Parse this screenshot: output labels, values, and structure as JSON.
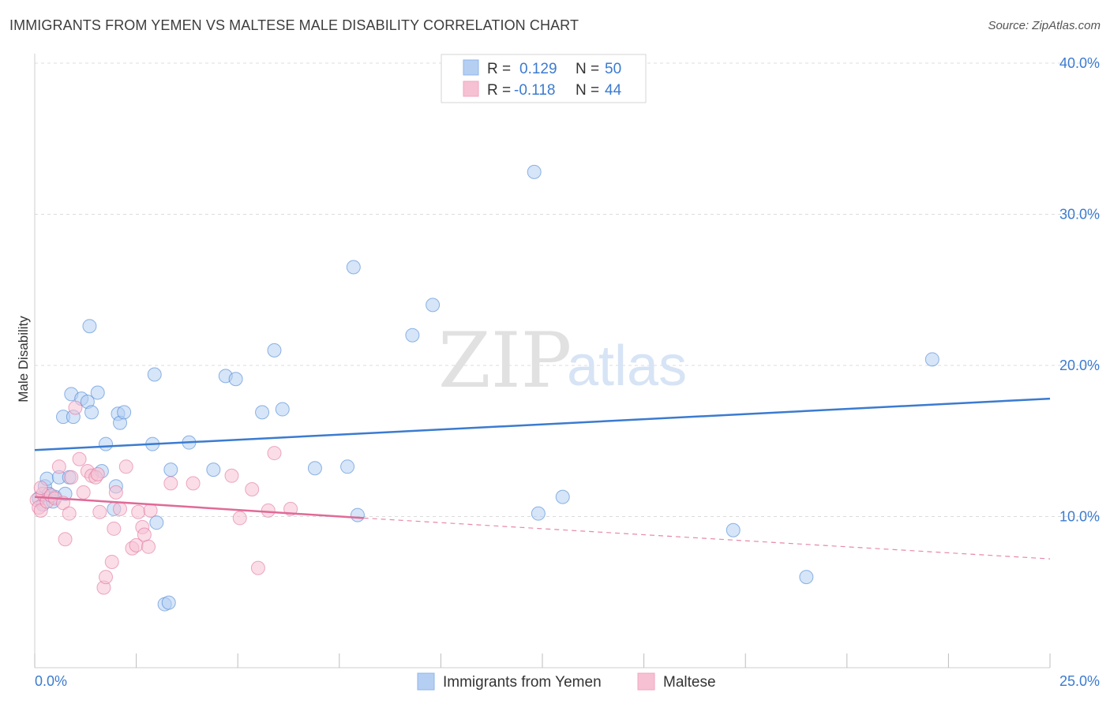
{
  "title": "IMMIGRANTS FROM YEMEN VS MALTESE MALE DISABILITY CORRELATION CHART",
  "source": "Source: ZipAtlas.com",
  "watermark": {
    "zip": "ZIP",
    "atlas": "atlas"
  },
  "legend": {
    "rows": [
      {
        "r_label": "R =",
        "r_value": "0.129",
        "n_label": "N =",
        "n_value": "50",
        "color": "#8fb6ea"
      },
      {
        "r_label": "R =",
        "r_value": "-0.118",
        "n_label": "N =",
        "n_value": "44",
        "color": "#f2a6bf"
      }
    ]
  },
  "bottom_legend": [
    {
      "label": "Immigrants from Yemen",
      "color": "#8fb6ea"
    },
    {
      "label": "Maltese",
      "color": "#f2a6bf"
    }
  ],
  "chart_data": {
    "type": "scatter",
    "ylabel": "Male Disability",
    "xlim": [
      0,
      25
    ],
    "ylim": [
      0,
      40
    ],
    "x_tick_labels": [
      {
        "value": 0,
        "label": "0.0%"
      },
      {
        "value": 25,
        "label": "25.0%"
      }
    ],
    "y_tick_labels": [
      {
        "value": 10,
        "label": "10.0%"
      },
      {
        "value": 20,
        "label": "20.0%"
      },
      {
        "value": 30,
        "label": "30.0%"
      },
      {
        "value": 40,
        "label": "40.0%"
      }
    ],
    "grid": true,
    "series": [
      {
        "name": "Immigrants from Yemen",
        "color": "#3b7bd0",
        "fill": "#b5cff2",
        "points": [
          [
            0.1,
            11.2
          ],
          [
            0.2,
            10.8
          ],
          [
            0.25,
            12.0
          ],
          [
            0.3,
            12.5
          ],
          [
            0.35,
            11.5
          ],
          [
            0.45,
            11.0
          ],
          [
            0.6,
            12.6
          ],
          [
            0.5,
            11.3
          ],
          [
            0.75,
            11.5
          ],
          [
            0.85,
            12.6
          ],
          [
            0.7,
            16.6
          ],
          [
            0.95,
            16.6
          ],
          [
            0.9,
            18.1
          ],
          [
            1.15,
            17.8
          ],
          [
            1.3,
            17.6
          ],
          [
            1.4,
            16.9
          ],
          [
            1.55,
            18.2
          ],
          [
            1.35,
            22.6
          ],
          [
            1.65,
            13.0
          ],
          [
            1.75,
            14.8
          ],
          [
            1.95,
            10.5
          ],
          [
            2.05,
            16.8
          ],
          [
            2.1,
            16.2
          ],
          [
            2.2,
            16.9
          ],
          [
            2.0,
            12.0
          ],
          [
            2.9,
            14.8
          ],
          [
            2.95,
            19.4
          ],
          [
            3.0,
            9.6
          ],
          [
            3.35,
            13.1
          ],
          [
            3.2,
            4.2
          ],
          [
            3.3,
            4.3
          ],
          [
            3.8,
            14.9
          ],
          [
            4.4,
            13.1
          ],
          [
            4.7,
            19.3
          ],
          [
            4.95,
            19.1
          ],
          [
            5.6,
            16.9
          ],
          [
            5.9,
            21.0
          ],
          [
            6.1,
            17.1
          ],
          [
            6.9,
            13.2
          ],
          [
            7.7,
            13.3
          ],
          [
            7.85,
            26.5
          ],
          [
            7.95,
            10.1
          ],
          [
            9.3,
            22.0
          ],
          [
            9.8,
            24.0
          ],
          [
            12.3,
            32.8
          ],
          [
            12.4,
            10.2
          ],
          [
            13.0,
            11.3
          ],
          [
            17.2,
            9.1
          ],
          [
            19.0,
            6.0
          ],
          [
            22.1,
            20.4
          ]
        ],
        "trend": {
          "x": [
            0,
            25
          ],
          "y": [
            14.4,
            17.8
          ]
        }
      },
      {
        "name": "Maltese",
        "color": "#e06a97",
        "fill": "#f6c1d3",
        "points": [
          [
            0.05,
            11.1
          ],
          [
            0.1,
            10.6
          ],
          [
            0.15,
            10.4
          ],
          [
            0.2,
            11.5
          ],
          [
            0.3,
            11.0
          ],
          [
            0.4,
            11.4
          ],
          [
            0.5,
            11.2
          ],
          [
            0.6,
            13.3
          ],
          [
            0.7,
            10.9
          ],
          [
            0.75,
            8.5
          ],
          [
            0.85,
            10.2
          ],
          [
            0.9,
            12.6
          ],
          [
            1.0,
            17.2
          ],
          [
            1.1,
            13.8
          ],
          [
            1.2,
            11.6
          ],
          [
            1.3,
            13.0
          ],
          [
            1.4,
            12.7
          ],
          [
            1.5,
            12.6
          ],
          [
            1.55,
            12.8
          ],
          [
            1.6,
            10.3
          ],
          [
            1.7,
            5.3
          ],
          [
            1.75,
            6.0
          ],
          [
            1.9,
            7.0
          ],
          [
            2.0,
            11.6
          ],
          [
            1.95,
            9.2
          ],
          [
            2.1,
            10.5
          ],
          [
            2.25,
            13.3
          ],
          [
            2.4,
            7.9
          ],
          [
            2.5,
            8.1
          ],
          [
            2.55,
            10.3
          ],
          [
            2.65,
            9.3
          ],
          [
            2.7,
            8.8
          ],
          [
            2.8,
            8.0
          ],
          [
            2.85,
            10.4
          ],
          [
            3.35,
            12.2
          ],
          [
            3.9,
            12.2
          ],
          [
            4.85,
            12.7
          ],
          [
            5.05,
            9.9
          ],
          [
            5.35,
            11.8
          ],
          [
            5.5,
            6.6
          ],
          [
            5.75,
            10.4
          ],
          [
            5.9,
            14.2
          ],
          [
            6.3,
            10.5
          ],
          [
            0.15,
            11.9
          ]
        ],
        "trend": {
          "x": [
            0,
            8.1
          ],
          "y": [
            11.3,
            9.9
          ]
        },
        "trend_dashed": {
          "x": [
            8.1,
            25
          ],
          "y": [
            9.9,
            7.2
          ]
        }
      }
    ]
  }
}
